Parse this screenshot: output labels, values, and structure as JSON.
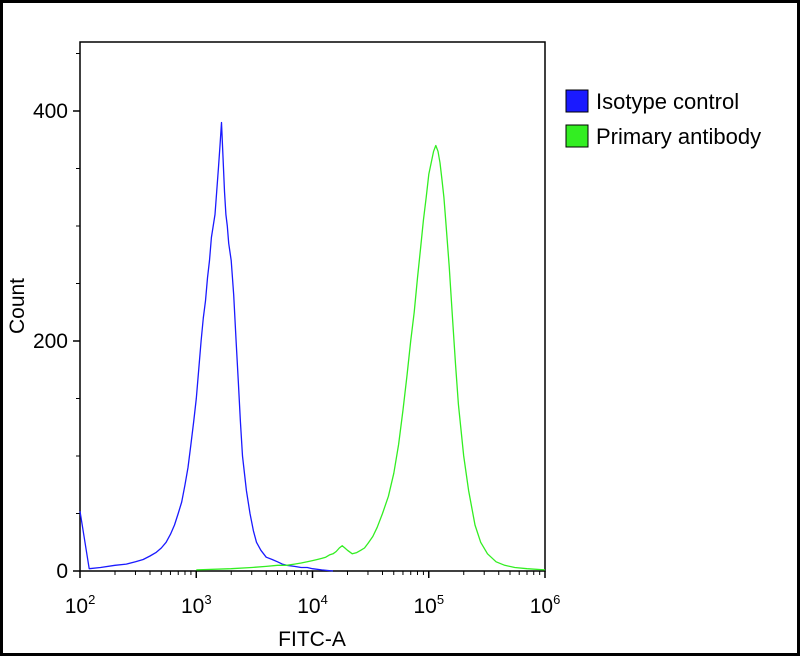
{
  "chart_data": {
    "type": "line",
    "title": "",
    "xlabel": "FITC-A",
    "ylabel": "Count",
    "x_scale": "log",
    "xlim": [
      100,
      1000000
    ],
    "ylim": [
      0,
      460
    ],
    "x_ticks": [
      {
        "base": "10",
        "exp": "2",
        "value": 100
      },
      {
        "base": "10",
        "exp": "3",
        "value": 1000
      },
      {
        "base": "10",
        "exp": "4",
        "value": 10000
      },
      {
        "base": "10",
        "exp": "5",
        "value": 100000
      },
      {
        "base": "10",
        "exp": "6",
        "value": 1000000
      }
    ],
    "y_ticks": [
      {
        "label": "0",
        "value": 0
      },
      {
        "label": "200",
        "value": 200
      },
      {
        "label": "400",
        "value": 400
      }
    ],
    "legend_position": "top-right",
    "series": [
      {
        "name": "Isotype control",
        "color": "#1a1aff",
        "x": [
          100,
          120,
          150,
          200,
          250,
          300,
          350,
          400,
          450,
          500,
          550,
          600,
          650,
          700,
          750,
          800,
          850,
          900,
          950,
          1000,
          1050,
          1100,
          1150,
          1200,
          1250,
          1300,
          1350,
          1400,
          1450,
          1500,
          1550,
          1600,
          1650,
          1700,
          1750,
          1800,
          1850,
          1900,
          2000,
          2100,
          2200,
          2300,
          2400,
          2500,
          2700,
          2900,
          3100,
          3300,
          3600,
          4000,
          4500,
          5000,
          5500,
          6000,
          7000,
          8000,
          9000,
          10000,
          12000,
          15000
        ],
        "y": [
          52,
          2,
          3,
          5,
          6,
          8,
          10,
          13,
          16,
          20,
          25,
          32,
          40,
          50,
          60,
          75,
          90,
          110,
          130,
          150,
          175,
          200,
          220,
          235,
          255,
          270,
          290,
          300,
          310,
          330,
          350,
          370,
          390,
          360,
          330,
          310,
          300,
          285,
          270,
          240,
          200,
          165,
          130,
          100,
          70,
          50,
          35,
          25,
          18,
          12,
          10,
          8,
          6,
          5,
          4,
          3,
          3,
          2,
          1,
          0
        ]
      },
      {
        "name": "Primary antibody",
        "color": "#33ee22",
        "x": [
          1000,
          2000,
          3000,
          4000,
          5000,
          6000,
          7000,
          8000,
          9000,
          10000,
          11000,
          12000,
          13000,
          14000,
          15000,
          16000,
          17000,
          18000,
          19000,
          20000,
          22000,
          24000,
          26000,
          28000,
          30000,
          33000,
          36000,
          40000,
          45000,
          50000,
          55000,
          60000,
          65000,
          70000,
          75000,
          80000,
          85000,
          90000,
          95000,
          100000,
          105000,
          110000,
          115000,
          120000,
          125000,
          130000,
          135000,
          140000,
          150000,
          160000,
          170000,
          180000,
          200000,
          220000,
          250000,
          280000,
          320000,
          380000,
          450000,
          550000,
          700000,
          1000000
        ],
        "y": [
          1,
          2,
          3,
          4,
          5,
          5,
          6,
          7,
          8,
          9,
          10,
          11,
          12,
          14,
          15,
          17,
          20,
          22,
          20,
          18,
          15,
          16,
          18,
          20,
          24,
          30,
          38,
          50,
          65,
          85,
          110,
          140,
          170,
          200,
          225,
          255,
          280,
          305,
          325,
          345,
          355,
          365,
          370,
          365,
          355,
          340,
          325,
          305,
          265,
          220,
          180,
          145,
          100,
          70,
          40,
          25,
          15,
          8,
          5,
          3,
          2,
          1
        ]
      }
    ]
  }
}
